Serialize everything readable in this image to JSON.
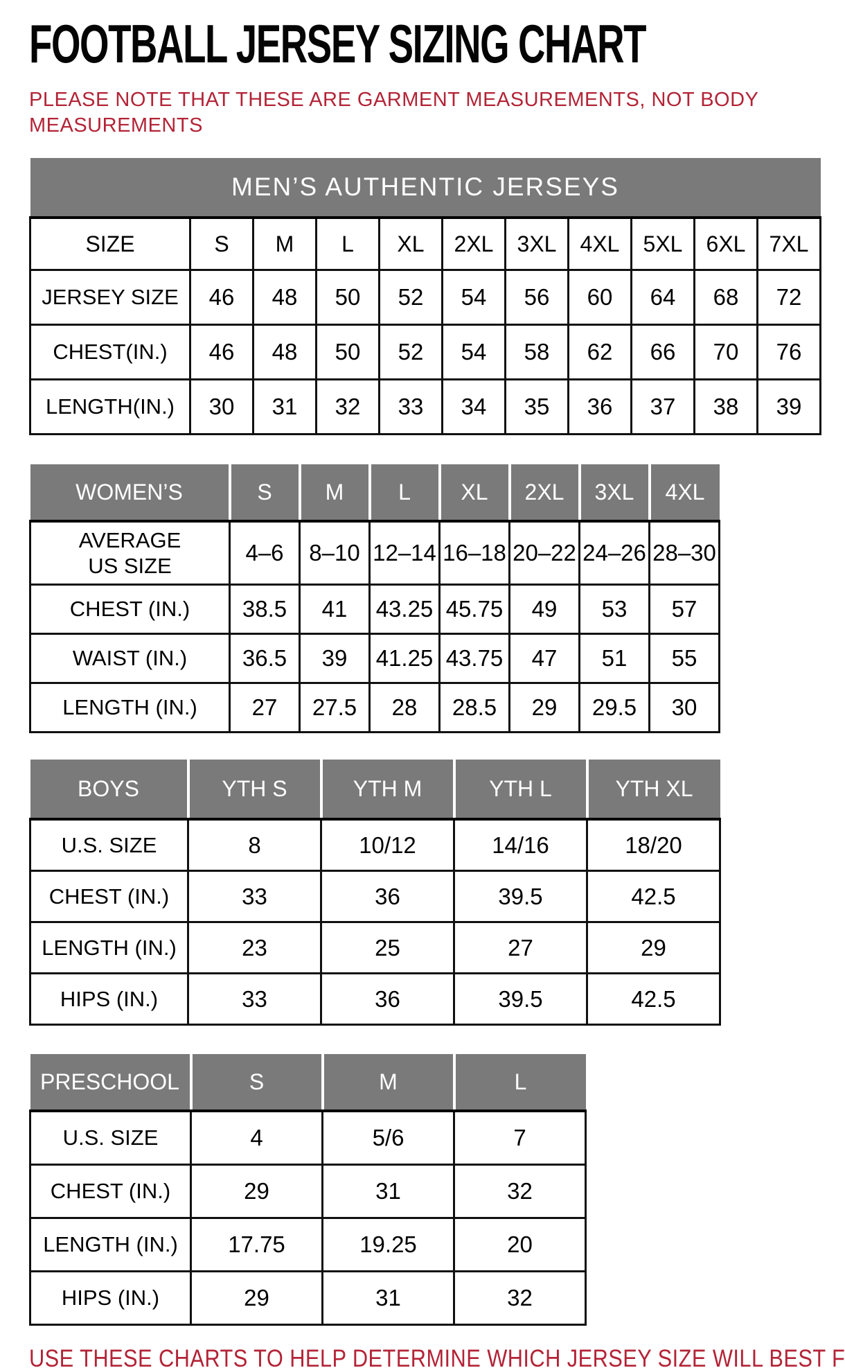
{
  "page": {
    "title": "FOOTBALL JERSEY SIZING CHART",
    "note_line1": "PLEASE NOTE THAT THESE ARE GARMENT MEASUREMENTS, NOT BODY",
    "note_line2": "MEASUREMENTS",
    "footer": "USE THESE CHARTS TO HELP DETERMINE WHICH JERSEY SIZE WILL BEST FIT YOU.",
    "colors": {
      "accent_red": "#b32336",
      "header_gray": "#7a7a7a",
      "border_black": "#111111"
    }
  },
  "tables": {
    "mens": {
      "banner": "MEN’S AUTHENTIC JERSEYS",
      "header_style": "plain",
      "header": [
        "SIZE",
        "S",
        "M",
        "L",
        "XL",
        "2XL",
        "3XL",
        "4XL",
        "5XL",
        "6XL",
        "7XL"
      ],
      "rows": [
        {
          "label": "JERSEY SIZE",
          "values": [
            "46",
            "48",
            "50",
            "52",
            "54",
            "56",
            "60",
            "64",
            "68",
            "72"
          ]
        },
        {
          "label": "CHEST(IN.)",
          "values": [
            "46",
            "48",
            "50",
            "52",
            "54",
            "58",
            "62",
            "66",
            "70",
            "76"
          ]
        },
        {
          "label": "LENGTH(IN.)",
          "values": [
            "30",
            "31",
            "32",
            "33",
            "34",
            "35",
            "36",
            "37",
            "38",
            "39"
          ]
        }
      ]
    },
    "womens": {
      "header_style": "gray",
      "header": [
        "WOMEN’S",
        "S",
        "M",
        "L",
        "XL",
        "2XL",
        "3XL",
        "4XL"
      ],
      "rows": [
        {
          "label": "AVERAGE\nUS SIZE",
          "values": [
            "4–6",
            "8–10",
            "12–14",
            "16–18",
            "20–22",
            "24–26",
            "28–30"
          ]
        },
        {
          "label": "CHEST (IN.)",
          "values": [
            "38.5",
            "41",
            "43.25",
            "45.75",
            "49",
            "53",
            "57"
          ]
        },
        {
          "label": "WAIST (IN.)",
          "values": [
            "36.5",
            "39",
            "41.25",
            "43.75",
            "47",
            "51",
            "55"
          ]
        },
        {
          "label": "LENGTH (IN.)",
          "values": [
            "27",
            "27.5",
            "28",
            "28.5",
            "29",
            "29.5",
            "30"
          ]
        }
      ]
    },
    "boys": {
      "header_style": "gray",
      "header": [
        "BOYS",
        "YTH S",
        "YTH M",
        "YTH L",
        "YTH XL"
      ],
      "rows": [
        {
          "label": "U.S. SIZE",
          "values": [
            "8",
            "10/12",
            "14/16",
            "18/20"
          ]
        },
        {
          "label": "CHEST (IN.)",
          "values": [
            "33",
            "36",
            "39.5",
            "42.5"
          ]
        },
        {
          "label": "LENGTH (IN.)",
          "values": [
            "23",
            "25",
            "27",
            "29"
          ]
        },
        {
          "label": "HIPS (IN.)",
          "values": [
            "33",
            "36",
            "39.5",
            "42.5"
          ]
        }
      ]
    },
    "preschool": {
      "header_style": "gray",
      "header": [
        "PRESCHOOL",
        "S",
        "M",
        "L"
      ],
      "rows": [
        {
          "label": "U.S. SIZE",
          "values": [
            "4",
            "5/6",
            "7"
          ]
        },
        {
          "label": "CHEST (IN.)",
          "values": [
            "29",
            "31",
            "32"
          ]
        },
        {
          "label": "LENGTH (IN.)",
          "values": [
            "17.75",
            "19.25",
            "20"
          ]
        },
        {
          "label": "HIPS (IN.)",
          "values": [
            "29",
            "31",
            "32"
          ]
        }
      ]
    }
  }
}
